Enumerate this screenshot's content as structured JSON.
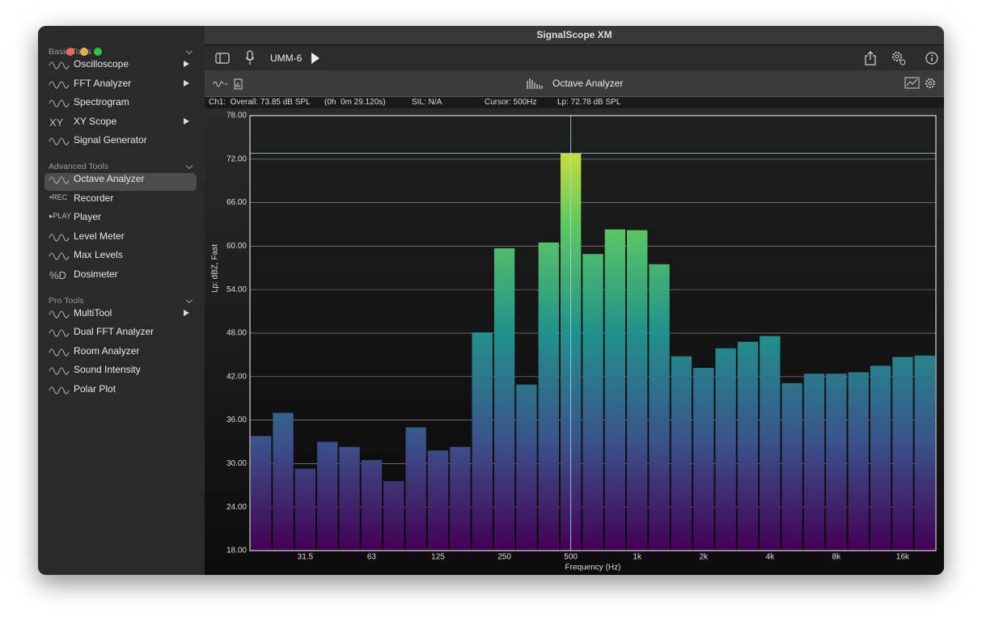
{
  "window": {
    "title": "SignalScope XM"
  },
  "sidebar": {
    "sections": [
      {
        "title": "Basic Tools",
        "items": [
          {
            "label": "Oscilloscope",
            "arrow": true
          },
          {
            "label": "FFT Analyzer",
            "arrow": true
          },
          {
            "label": "Spectrogram",
            "arrow": false
          },
          {
            "label": "XY Scope",
            "arrow": true,
            "icon_text": "XY"
          },
          {
            "label": "Signal Generator",
            "arrow": false
          }
        ]
      },
      {
        "title": "Advanced Tools",
        "items": [
          {
            "label": "Octave Analyzer",
            "arrow": false,
            "selected": true
          },
          {
            "label": "Recorder",
            "arrow": false,
            "icon_text": "•REC"
          },
          {
            "label": "Player",
            "arrow": false,
            "icon_text": "▸PLAY"
          },
          {
            "label": "Level Meter",
            "arrow": false
          },
          {
            "label": "Max Levels",
            "arrow": false
          },
          {
            "label": "Dosimeter",
            "arrow": false,
            "icon_text": "%D"
          }
        ]
      },
      {
        "title": "Pro Tools",
        "items": [
          {
            "label": "MultiTool",
            "arrow": true
          },
          {
            "label": "Dual FFT Analyzer",
            "arrow": false
          },
          {
            "label": "Room Analyzer",
            "arrow": false
          },
          {
            "label": "Sound Intensity",
            "arrow": false
          },
          {
            "label": "Polar Plot",
            "arrow": false
          }
        ]
      }
    ]
  },
  "toolbar": {
    "device": "UMM-6"
  },
  "panel": {
    "title": "Octave Analyzer"
  },
  "status": [
    "Ch1:  Overall: 73.85 dB SPL",
    "(0h  0m 29.120s)",
    "SIL: N/A",
    "Cursor: 500Hz",
    "Lp: 72.78 dB SPL"
  ],
  "chart_data": {
    "type": "bar",
    "x_label": "Frequency (Hz)",
    "y_label": "Lp: dBZ, Fast",
    "categories": [
      null,
      null,
      "31.5",
      null,
      null,
      "63",
      null,
      null,
      "125",
      null,
      null,
      "250",
      null,
      null,
      "500",
      null,
      null,
      "1k",
      null,
      null,
      "2k",
      null,
      null,
      "4k",
      null,
      null,
      "8k",
      null,
      null,
      "16k",
      null
    ],
    "values": [
      33.8,
      37.0,
      29.3,
      33.0,
      32.3,
      30.5,
      27.6,
      35.0,
      31.8,
      32.3,
      48.1,
      59.7,
      40.9,
      60.5,
      72.8,
      58.9,
      62.3,
      62.2,
      57.5,
      44.8,
      43.2,
      45.9,
      46.8,
      47.6,
      41.1,
      42.4,
      42.4,
      42.6,
      43.5,
      44.7,
      44.9
    ],
    "ylim": [
      18,
      78
    ],
    "yticks": [
      {
        "value": 18,
        "label": "18.00"
      },
      {
        "value": 24,
        "label": "24.00"
      },
      {
        "value": 30,
        "label": "30.00"
      },
      {
        "value": 36,
        "label": "36.00"
      },
      {
        "value": 42,
        "label": "42.00"
      },
      {
        "value": 48,
        "label": "48.00"
      },
      {
        "value": 54,
        "label": "54.00"
      },
      {
        "value": 60,
        "label": "60.00"
      },
      {
        "value": 66,
        "label": "66.00"
      },
      {
        "value": 72,
        "label": "72.00"
      },
      {
        "value": 78,
        "label": "78.00"
      }
    ],
    "grid": true,
    "color_stops": [
      "#440154",
      "#3b528b",
      "#21918c",
      "#5ec962",
      "#fde725"
    ]
  }
}
